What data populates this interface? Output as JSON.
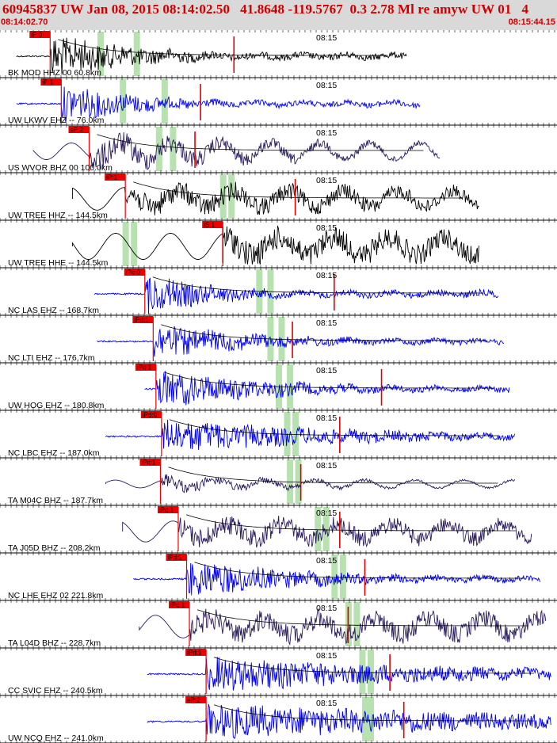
{
  "header": {
    "title": "60945837 UW Jan 08, 2015 08:14:02.50   41.8648 -119.5767  0.3 2.78 Ml re amyw UW 01   4",
    "start_time": "08:14:02.70",
    "end_time": "08:15:44.15",
    "colors": {
      "title": "#cc0000",
      "header_bg": "#d9d9d9",
      "pick": "#ee0000",
      "window": "#b7e2b0"
    }
  },
  "traces": [
    {
      "label": "BK MOD HHZ 00 60.8km",
      "color": "#000000",
      "time_mark": "08:15",
      "pick": "iP:0",
      "style": "hf",
      "amp": 28,
      "decay": 1.2,
      "sTrace": 0.07,
      "sStart": 0.03,
      "pickT": 0.09,
      "end": 0.73,
      "gWin": [
        0.175,
        0.24
      ],
      "sMark": 0.42,
      "curve": true
    },
    {
      "label": "UW LKWV EHZ -- 76.0km",
      "color": "#0000ee",
      "time_mark": "08:15",
      "pick": "iP:1",
      "style": "hf",
      "amp": 24,
      "decay": 1.3,
      "sTrace": 0.045,
      "sStart": 0.03,
      "pickT": 0.11,
      "end": 0.755,
      "gWin": [
        0.215,
        0.29
      ],
      "sMark": 0.36,
      "curve": false
    },
    {
      "label": "US WVOR BHZ 00 100.0km",
      "color": "#2a1a5e",
      "time_mark": "08:15",
      "pick": "eP:2",
      "style": "mix",
      "amp": 30,
      "decay": 0.6,
      "sTrace": 0.06,
      "sStart": 0.06,
      "pickT": 0.16,
      "end": 0.79,
      "gWin": [
        0.28,
        0.305
      ],
      "sMark": 0.35,
      "curve": true
    },
    {
      "label": "UW TREE HHZ -- 144.5km",
      "color": "#000000",
      "time_mark": "08:15",
      "pick": "iP:1",
      "style": "lf",
      "amp": 26,
      "decay": 0.2,
      "sTrace": 0.05,
      "sStart": 0.13,
      "pickT": 0.225,
      "end": 0.86,
      "gWin": [
        0.395,
        0.41
      ],
      "sMark": 0.53,
      "curve": true
    },
    {
      "label": "UW TREE HHE -- 144.5km",
      "color": "#000000",
      "time_mark": "08:15",
      "pick": "iS:1",
      "style": "lf",
      "amp": 30,
      "decay": 0.1,
      "sTrace": 0.04,
      "sStart": 0.13,
      "pickT": 0.4,
      "end": 0.86,
      "gWin": [
        0.22,
        0.235
      ],
      "sMark": 0.4,
      "curve": false
    },
    {
      "label": "NC LAS EHZ -- 168.7km",
      "color": "#0000ee",
      "time_mark": "08:15",
      "pick": "iPd:0",
      "style": "hf",
      "amp": 26,
      "decay": 1.5,
      "sTrace": 0.05,
      "sStart": 0.17,
      "pickT": 0.26,
      "end": 0.895,
      "gWin": [
        0.46,
        0.48
      ],
      "sMark": 0.6,
      "curve": true
    },
    {
      "label": "NC LTI EHZ -- 176.7km",
      "color": "#0000ee",
      "time_mark": "08:15",
      "pick": "iPd:1",
      "style": "hf",
      "amp": 22,
      "decay": 1.0,
      "sTrace": 0.05,
      "sStart": 0.175,
      "pickT": 0.275,
      "end": 0.905,
      "gWin": [
        0.48,
        0.5
      ],
      "sMark": 0.525,
      "curve": true
    },
    {
      "label": "UW HOG EHZ -- 180.8km",
      "color": "#0000ee",
      "time_mark": "08:15",
      "pick": "iPd:1",
      "style": "hf",
      "amp": 24,
      "decay": 0.9,
      "sTrace": 0.05,
      "sStart": 0.26,
      "pickT": 0.28,
      "end": 0.915,
      "gWin": [
        0.495,
        0.515
      ],
      "sMark": 0.685,
      "curve": true
    },
    {
      "label": "NC LBC EHZ -- 187.0km",
      "color": "#0000ee",
      "time_mark": "08:15",
      "pick": "iPd:0",
      "style": "hf",
      "amp": 22,
      "decay": 0.6,
      "sTrace": 0.05,
      "sStart": 0.19,
      "pickT": 0.29,
      "end": 0.925,
      "gWin": [
        0.51,
        0.525
      ],
      "sMark": 0.61,
      "curve": true
    },
    {
      "label": "TA M04C BHZ -- 187.7km",
      "color": "#2a1a5e",
      "time_mark": "08:15",
      "pick": "iPc:1",
      "style": "mix",
      "amp": 14,
      "decay": 0.8,
      "sTrace": 0.06,
      "sStart": 0.19,
      "pickT": 0.288,
      "end": 0.925,
      "gWin": [
        0.515,
        0.53
      ],
      "sMark": 0.54,
      "curve": true
    },
    {
      "label": "TA J05D BHZ -- 208.2km",
      "color": "#2a1a5e",
      "time_mark": "08:15",
      "pick": "iPd:1",
      "style": "lf",
      "amp": 24,
      "decay": 0.15,
      "sTrace": 0.04,
      "sStart": 0.22,
      "pickT": 0.32,
      "end": 0.955,
      "gWin": [
        0.565,
        0.58
      ],
      "sMark": 0.61,
      "curve": true
    },
    {
      "label": "NC LHE EHZ 02 221.8km",
      "color": "#0000ee",
      "time_mark": "08:15",
      "pick": "iPd:1",
      "style": "hf",
      "amp": 24,
      "decay": 0.9,
      "sTrace": 0.05,
      "sStart": 0.24,
      "pickT": 0.335,
      "end": 0.97,
      "gWin": [
        0.595,
        0.61
      ],
      "sMark": 0.655,
      "curve": true
    },
    {
      "label": "TA L04D BHZ -- 228.7km",
      "color": "#2a1a5e",
      "time_mark": "08:15",
      "pick": "iPd:1",
      "style": "lf",
      "amp": 26,
      "decay": 0.1,
      "sTrace": 0.04,
      "sStart": 0.25,
      "pickT": 0.34,
      "end": 0.98,
      "gWin": [
        0.62,
        0.635
      ],
      "sMark": 0.625,
      "curve": true
    },
    {
      "label": "CC SVIC EHZ -- 240.5km",
      "color": "#0000ee",
      "time_mark": "08:15",
      "pick": "iPd:1",
      "style": "hf",
      "amp": 22,
      "decay": 0.4,
      "sTrace": 0.05,
      "sStart": 0.265,
      "pickT": 0.37,
      "end": 0.99,
      "gWin": [
        0.645,
        0.66
      ],
      "sMark": 0.7,
      "curve": true
    },
    {
      "label": "UW NCQ EHZ -- 241.0km",
      "color": "#0000ee",
      "time_mark": "08:15",
      "pick": "eP:2",
      "style": "hf",
      "amp": 22,
      "decay": 0.3,
      "sTrace": 0.05,
      "sStart": 0.265,
      "pickT": 0.37,
      "end": 0.99,
      "gWin": [
        0.65,
        0.66
      ],
      "sMark": 0.725,
      "curve": true
    }
  ]
}
